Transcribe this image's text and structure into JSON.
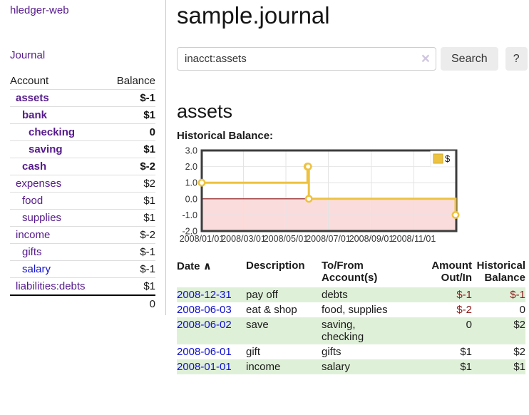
{
  "colors": {
    "link_purple": "#551a8b",
    "link_blue": "#1212d2",
    "negative_strong": "#7e1414",
    "negative_soft": "#b06a6a",
    "table_negative": "#8b1a1a",
    "row_highlight_green": "#dff0d8",
    "series_yellow": "#edc240",
    "chart_negative_region": "#fbdcdc",
    "chart_zero_line": "#8b1212",
    "chart_border": "#3d3d3d",
    "chart_grid": "#e4e4e4"
  },
  "sidebar": {
    "app_title": "hledger-web",
    "journal_link": "Journal",
    "accounts": {
      "col_account": "Account",
      "col_balance": "Balance",
      "rows": [
        {
          "name": "assets",
          "level": 0,
          "bold": true,
          "balance": "$-1"
        },
        {
          "name": "bank",
          "level": 1,
          "bold": true,
          "balance": "$1"
        },
        {
          "name": "checking",
          "level": 2,
          "bold": true,
          "balance": "0"
        },
        {
          "name": "saving",
          "level": 2,
          "bold": true,
          "balance": "$1"
        },
        {
          "name": "cash",
          "level": 1,
          "bold": true,
          "balance": "$-2"
        },
        {
          "name": "expenses",
          "level": 0,
          "bold": false,
          "balance": "$2"
        },
        {
          "name": "food",
          "level": 1,
          "bold": false,
          "balance": "$1"
        },
        {
          "name": "supplies",
          "level": 1,
          "bold": false,
          "balance": "$1"
        },
        {
          "name": "income",
          "level": 0,
          "bold": false,
          "balance": "$-2"
        },
        {
          "name": "gifts",
          "level": 1,
          "bold": false,
          "balance": "$-1"
        },
        {
          "name": "salary",
          "level": 1,
          "bold": false,
          "balance": "$-1",
          "unvisited": true
        },
        {
          "name": "liabilities:debts",
          "level": 0,
          "bold": false,
          "balance": "$1"
        }
      ],
      "total": "0"
    }
  },
  "main": {
    "title": "sample.journal",
    "search": {
      "value": "inacct:assets",
      "clear_icon": "×",
      "button_label": "Search",
      "help_label": "?"
    },
    "account_heading": "assets",
    "chart_title": "Historical Balance:"
  },
  "register": {
    "columns": [
      {
        "label": "Date",
        "sort_icon": "∧",
        "align": "left"
      },
      {
        "label": "Description",
        "align": "left"
      },
      {
        "label": "To/From\nAccount(s)",
        "align": "left"
      },
      {
        "label": "Amount\nOut/In",
        "align": "right"
      },
      {
        "label": "Historical\nBalance",
        "align": "right"
      }
    ],
    "rows": [
      {
        "date": "2008-12-31",
        "description": "pay off",
        "accounts": "debts",
        "amount": "$-1",
        "balance": "$-1"
      },
      {
        "date": "2008-06-03",
        "description": "eat & shop",
        "accounts": "food, supplies",
        "amount": "$-2",
        "balance": "0"
      },
      {
        "date": "2008-06-02",
        "description": "save",
        "accounts": "saving,\nchecking",
        "amount": "0",
        "balance": "$2"
      },
      {
        "date": "2008-06-01",
        "description": "gift",
        "accounts": "gifts",
        "amount": "$1",
        "balance": "$2"
      },
      {
        "date": "2008-01-01",
        "description": "income",
        "accounts": "salary",
        "amount": "$1",
        "balance": "$1"
      }
    ]
  },
  "chart_data": {
    "type": "line",
    "style": "step",
    "title": "Historical Balance:",
    "series": [
      {
        "name": "$",
        "points": [
          [
            "2008-01-01",
            1
          ],
          [
            "2008-06-01",
            2
          ],
          [
            "2008-06-02",
            2
          ],
          [
            "2008-06-03",
            0
          ],
          [
            "2008-12-31",
            -1
          ]
        ]
      }
    ],
    "x_range": [
      "2008-01-01",
      "2009-01-01"
    ],
    "x_ticks": [
      "2008/01/01",
      "2008/03/01",
      "2008/05/01",
      "2008/07/01",
      "2008/09/01",
      "2008/11/01"
    ],
    "y_ticks": [
      3.0,
      2.0,
      1.0,
      0.0,
      -1.0,
      -2.0
    ],
    "ylim": [
      -2,
      3
    ],
    "grid": true,
    "legend_position": "top-right",
    "negative_region_shaded": true
  }
}
